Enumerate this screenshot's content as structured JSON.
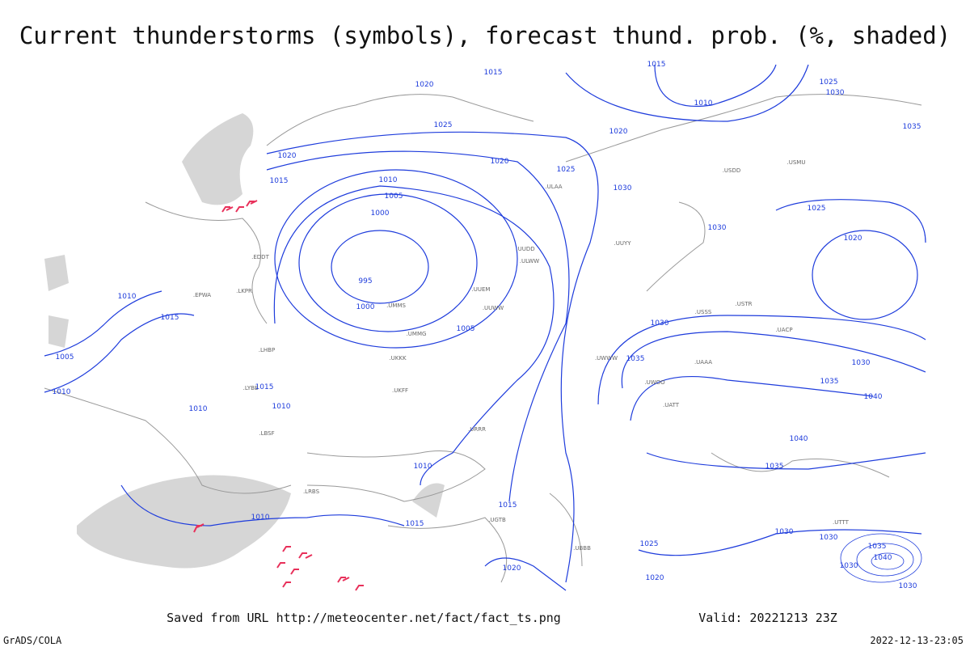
{
  "header": {
    "title": "Current thunderstorms (symbols), forecast thund. prob. (%, shaded)"
  },
  "isobar_labels": [
    1015,
    1015,
    1020,
    1025,
    1010,
    1020,
    1025,
    1030,
    1035,
    1020,
    1020,
    1025,
    1015,
    1010,
    1005,
    1000,
    1030,
    1030,
    1025,
    1020,
    995,
    1000,
    1005,
    1010,
    1015,
    1005,
    1010,
    1015,
    1010,
    1010,
    1030,
    1035,
    1030,
    1035,
    1040,
    1040,
    1035,
    1010,
    1015,
    1015,
    1010,
    1030,
    1025,
    1020,
    1020,
    1030,
    1035,
    1040,
    1030,
    1030
  ],
  "stations": [
    ".ULWW",
    ".UUEM",
    ".UUWW",
    ".UMMG",
    ".UMMS",
    ".UKKK",
    ".UKFF",
    ".URRR",
    ".UWWW",
    ".USSS",
    ".UATT",
    ".UACP",
    ".LBSF",
    ".LHBP",
    ".LKPR",
    ".EPWA",
    ".EDDT",
    ".LYBE",
    ".LRBS",
    ".UUYY",
    ".USDD",
    ".USMU",
    ".USTR",
    ".UAAA",
    ".UTTT",
    ".UBBB",
    ".UGTB",
    ".UUDD",
    ".UWOO",
    ".ULAA"
  ],
  "footer": {
    "source": "Saved from URL http://meteocenter.net/fact/fact_ts.png",
    "valid": "Valid: 20221213 23Z",
    "software": "GrADS/COLA",
    "timestamp": "2022-12-13-23:05"
  }
}
